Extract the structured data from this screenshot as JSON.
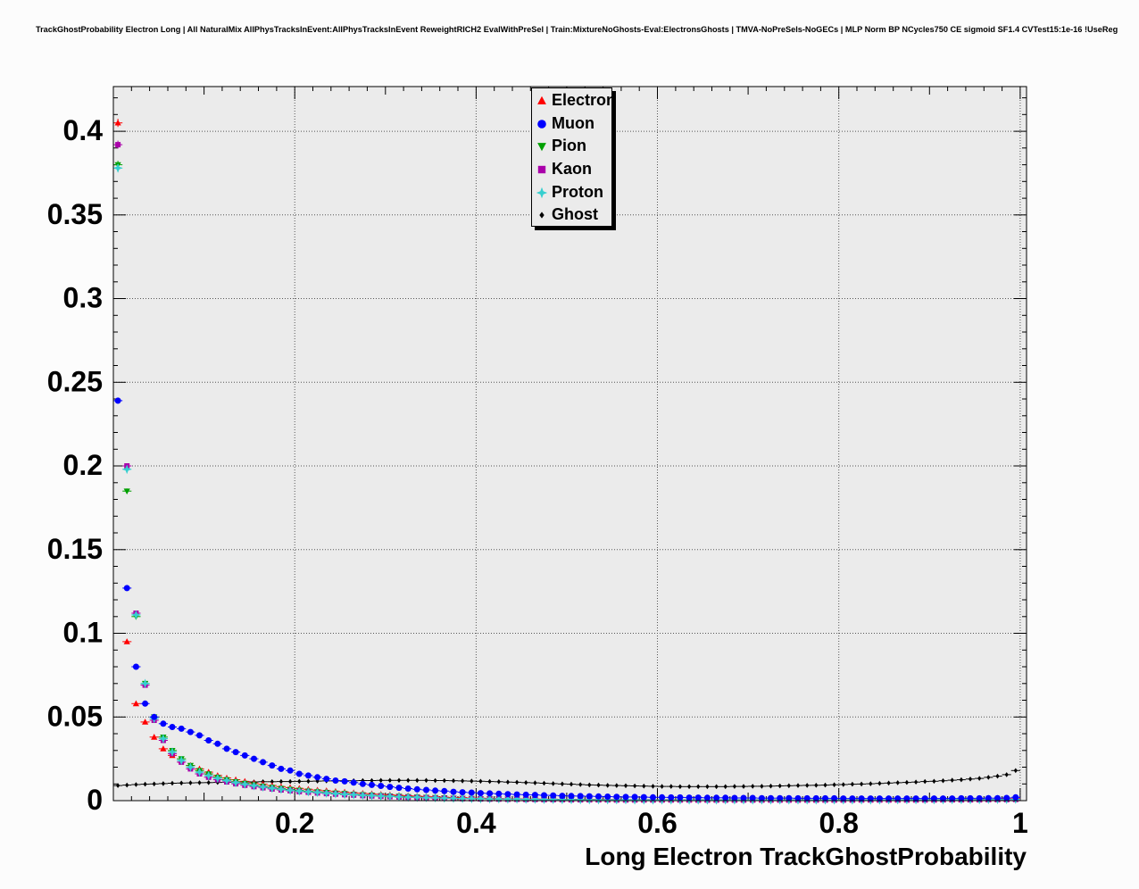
{
  "chart_data": {
    "type": "scatter",
    "title": "TrackGhostProbability Electron Long | All NaturalMix AllPhysTracksInEvent:AllPhysTracksInEvent ReweightRICH2 EvalWithPreSel | Train:MixtureNoGhosts-Eval:ElectronsGhosts | TMVA-NoPreSels-NoGECs | MLP Norm BP NCycles750 CE sigmoid SF1.4 CVTest15:1e-16 !UseReg",
    "xlabel": "Long Electron TrackGhostProbability",
    "ylabel": "",
    "xlim": [
      0,
      1.007
    ],
    "ylim": [
      0,
      0.4267
    ],
    "grid": true,
    "legend_position": "top-center",
    "x_tick_values": [
      0.2,
      0.4,
      0.6,
      0.8,
      1
    ],
    "x_tick_labels": [
      "0.2",
      "0.4",
      "0.6",
      "0.8",
      "1"
    ],
    "y_tick_values": [
      0,
      0.05,
      0.1,
      0.15,
      0.2,
      0.25,
      0.3,
      0.35,
      0.4
    ],
    "y_tick_labels": [
      "0",
      "0.05",
      "0.1",
      "0.15",
      "0.2",
      "0.25",
      "0.3",
      "0.35",
      "0.4"
    ],
    "x_start": 0.005,
    "x_bin_width": 0.01,
    "series": [
      {
        "name": "Electron",
        "color": "#ff0000",
        "marker": "triangle-up",
        "values": [
          0.405,
          0.095,
          0.058,
          0.047,
          0.038,
          0.031,
          0.027,
          0.024,
          0.021,
          0.019,
          0.017,
          0.015,
          0.0135,
          0.0125,
          0.0115,
          0.0105,
          0.0098,
          0.009,
          0.0084,
          0.0078,
          0.0073,
          0.0068,
          0.0063,
          0.0059,
          0.0055,
          0.0051,
          0.0047,
          0.0044,
          0.0041,
          0.0038,
          0.0035,
          0.0032,
          0.003,
          0.0027,
          0.0025,
          0.0023,
          0.0021,
          0.0019,
          0.0018,
          0.0016,
          0.0015,
          0.0014,
          0.0013,
          0.0012,
          0.0011,
          0.001,
          0.001,
          0.0009,
          0.0009,
          0.0008,
          0.0008,
          0.0008,
          0.0007,
          0.0007,
          0.0007,
          0.0007,
          0.0006,
          0.0006,
          0.0006,
          0.0006,
          0.0006,
          0.0006,
          0.0005,
          0.0005,
          0.0005,
          0.0005,
          0.0005,
          0.0005,
          0.0005,
          0.0005,
          0.0005,
          0.0005,
          0.0005,
          0.0005,
          0.0005,
          0.0005,
          0.0005,
          0.0005,
          0.0005,
          0.0005,
          0.0005,
          0.0005,
          0.0005,
          0.0005,
          0.0005,
          0.0005,
          0.0005,
          0.0005,
          0.0005,
          0.0006,
          0.0006,
          0.0006,
          0.0006,
          0.0007,
          0.0007,
          0.0008,
          0.0008,
          0.0009,
          0.001,
          0.0012
        ]
      },
      {
        "name": "Muon",
        "color": "#0000ff",
        "marker": "circle",
        "values": [
          0.239,
          0.127,
          0.08,
          0.058,
          0.05,
          0.046,
          0.044,
          0.043,
          0.041,
          0.039,
          0.036,
          0.034,
          0.031,
          0.029,
          0.027,
          0.025,
          0.023,
          0.021,
          0.019,
          0.018,
          0.016,
          0.015,
          0.014,
          0.013,
          0.012,
          0.0115,
          0.0108,
          0.01,
          0.0094,
          0.0088,
          0.0082,
          0.0077,
          0.0072,
          0.0068,
          0.0064,
          0.006,
          0.0057,
          0.0053,
          0.005,
          0.0048,
          0.0045,
          0.0043,
          0.0041,
          0.0039,
          0.0037,
          0.0035,
          0.0034,
          0.0032,
          0.0031,
          0.0029,
          0.0028,
          0.0027,
          0.0026,
          0.0025,
          0.0024,
          0.0023,
          0.0022,
          0.0022,
          0.0021,
          0.002,
          0.002,
          0.0019,
          0.0019,
          0.0018,
          0.0018,
          0.0017,
          0.0017,
          0.0017,
          0.0016,
          0.0016,
          0.0016,
          0.0015,
          0.0015,
          0.0015,
          0.0015,
          0.0014,
          0.0014,
          0.0014,
          0.0014,
          0.0014,
          0.0013,
          0.0013,
          0.0013,
          0.0013,
          0.0013,
          0.0013,
          0.0013,
          0.0013,
          0.0013,
          0.0013,
          0.0013,
          0.0013,
          0.0013,
          0.0014,
          0.0014,
          0.0014,
          0.0015,
          0.0015,
          0.0016,
          0.002
        ]
      },
      {
        "name": "Pion",
        "color": "#00a000",
        "marker": "triangle-down",
        "values": [
          0.38,
          0.185,
          0.11,
          0.07,
          0.05,
          0.038,
          0.03,
          0.025,
          0.021,
          0.018,
          0.016,
          0.014,
          0.0125,
          0.0113,
          0.0103,
          0.0094,
          0.0086,
          0.0079,
          0.0073,
          0.0067,
          0.0062,
          0.0057,
          0.0053,
          0.0049,
          0.0045,
          0.0042,
          0.0038,
          0.0035,
          0.0033,
          0.003,
          0.0028,
          0.0026,
          0.0024,
          0.0022,
          0.002,
          0.0018,
          0.0017,
          0.0015,
          0.0014,
          0.0013,
          0.0012,
          0.0011,
          0.001,
          0.0009,
          0.0009,
          0.0008,
          0.0008,
          0.0007,
          0.0007,
          0.0007,
          0.0006,
          0.0006,
          0.0006,
          0.0006,
          0.0005,
          0.0005,
          0.0005,
          0.0005,
          0.0005,
          0.0005,
          0.0004,
          0.0004,
          0.0004,
          0.0004,
          0.0004,
          0.0004,
          0.0004,
          0.0004,
          0.0004,
          0.0004,
          0.0004,
          0.0004,
          0.0004,
          0.0004,
          0.0004,
          0.0004,
          0.0004,
          0.0004,
          0.0004,
          0.0004,
          0.0004,
          0.0004,
          0.0004,
          0.0004,
          0.0004,
          0.0004,
          0.0004,
          0.0004,
          0.0005,
          0.0005,
          0.0005,
          0.0005,
          0.0005,
          0.0006,
          0.0006,
          0.0006,
          0.0007,
          0.0007,
          0.0007,
          0.0008
        ]
      },
      {
        "name": "Kaon",
        "color": "#aa00aa",
        "marker": "square",
        "values": [
          0.392,
          0.2,
          0.112,
          0.069,
          0.048,
          0.036,
          0.028,
          0.023,
          0.019,
          0.016,
          0.014,
          0.0125,
          0.0112,
          0.0101,
          0.0092,
          0.0084,
          0.0077,
          0.007,
          0.0064,
          0.0059,
          0.0054,
          0.005,
          0.0046,
          0.0042,
          0.0039,
          0.0036,
          0.0033,
          0.003,
          0.0028,
          0.0026,
          0.0024,
          0.0022,
          0.002,
          0.0018,
          0.0017,
          0.0015,
          0.0014,
          0.0013,
          0.0012,
          0.0011,
          0.001,
          0.0009,
          0.0009,
          0.0008,
          0.0008,
          0.0007,
          0.0007,
          0.0006,
          0.0006,
          0.0006,
          0.0005,
          0.0005,
          0.0005,
          0.0005,
          0.0005,
          0.0004,
          0.0004,
          0.0004,
          0.0004,
          0.0004,
          0.0004,
          0.0004,
          0.0004,
          0.0004,
          0.0003,
          0.0003,
          0.0003,
          0.0003,
          0.0003,
          0.0003,
          0.0003,
          0.0003,
          0.0003,
          0.0003,
          0.0003,
          0.0003,
          0.0003,
          0.0003,
          0.0003,
          0.0003,
          0.0003,
          0.0003,
          0.0004,
          0.0004,
          0.0004,
          0.0004,
          0.0004,
          0.0004,
          0.0004,
          0.0004,
          0.0004,
          0.0005,
          0.0005,
          0.0005,
          0.0005,
          0.0005,
          0.0006,
          0.0006,
          0.0006,
          0.0007
        ]
      },
      {
        "name": "Proton",
        "color": "#35cfcf",
        "marker": "star",
        "values": [
          0.378,
          0.198,
          0.111,
          0.07,
          0.049,
          0.037,
          0.029,
          0.024,
          0.02,
          0.017,
          0.015,
          0.0134,
          0.012,
          0.0108,
          0.0098,
          0.0089,
          0.0081,
          0.0074,
          0.0068,
          0.0062,
          0.0057,
          0.0053,
          0.0049,
          0.0045,
          0.0041,
          0.0038,
          0.0035,
          0.0032,
          0.003,
          0.0027,
          0.0025,
          0.0023,
          0.0021,
          0.002,
          0.0018,
          0.0017,
          0.0015,
          0.0014,
          0.0013,
          0.0012,
          0.0011,
          0.001,
          0.001,
          0.0009,
          0.0009,
          0.0008,
          0.0008,
          0.0007,
          0.0007,
          0.0006,
          0.0006,
          0.0006,
          0.0005,
          0.0005,
          0.0005,
          0.0005,
          0.0005,
          0.0004,
          0.0004,
          0.0004,
          0.0004,
          0.0004,
          0.0004,
          0.0004,
          0.0004,
          0.0004,
          0.0004,
          0.0004,
          0.0004,
          0.0004,
          0.0004,
          0.0004,
          0.0004,
          0.0004,
          0.0004,
          0.0004,
          0.0004,
          0.0004,
          0.0004,
          0.0004,
          0.0004,
          0.0004,
          0.0004,
          0.0004,
          0.0004,
          0.0005,
          0.0005,
          0.0005,
          0.0005,
          0.0005,
          0.0005,
          0.0005,
          0.0006,
          0.0006,
          0.0006,
          0.0006,
          0.0007,
          0.0007,
          0.0007,
          0.0008
        ]
      },
      {
        "name": "Ghost",
        "color": "#000000",
        "marker": "diamond",
        "values": [
          0.009,
          0.0093,
          0.0096,
          0.0098,
          0.01,
          0.0102,
          0.0104,
          0.0105,
          0.0106,
          0.0107,
          0.0108,
          0.0109,
          0.011,
          0.0111,
          0.0112,
          0.0112,
          0.0113,
          0.0113,
          0.0114,
          0.0114,
          0.0115,
          0.0116,
          0.0117,
          0.0118,
          0.0118,
          0.0119,
          0.0119,
          0.012,
          0.012,
          0.0121,
          0.0121,
          0.0121,
          0.0121,
          0.0121,
          0.0121,
          0.012,
          0.012,
          0.0119,
          0.0118,
          0.0117,
          0.0116,
          0.0114,
          0.0113,
          0.0111,
          0.011,
          0.0108,
          0.0106,
          0.0104,
          0.0102,
          0.01,
          0.0098,
          0.0096,
          0.0094,
          0.0093,
          0.0091,
          0.009,
          0.0089,
          0.0088,
          0.0087,
          0.0086,
          0.0085,
          0.0085,
          0.0084,
          0.0084,
          0.0084,
          0.0084,
          0.0084,
          0.0084,
          0.0085,
          0.0085,
          0.0086,
          0.0086,
          0.0087,
          0.0088,
          0.0089,
          0.009,
          0.0091,
          0.0092,
          0.0093,
          0.0095,
          0.0096,
          0.0098,
          0.0099,
          0.0101,
          0.0103,
          0.0105,
          0.0107,
          0.0109,
          0.0111,
          0.0114,
          0.0116,
          0.0119,
          0.0122,
          0.0125,
          0.0129,
          0.0133,
          0.0139,
          0.0146,
          0.0155,
          0.018
        ]
      }
    ]
  },
  "colors": {
    "page_bg": "#fcfcfc",
    "frame_bg": "#ebebeb",
    "grid": "#555555",
    "axis": "#000000",
    "legend_bg": "#ebebeb"
  }
}
